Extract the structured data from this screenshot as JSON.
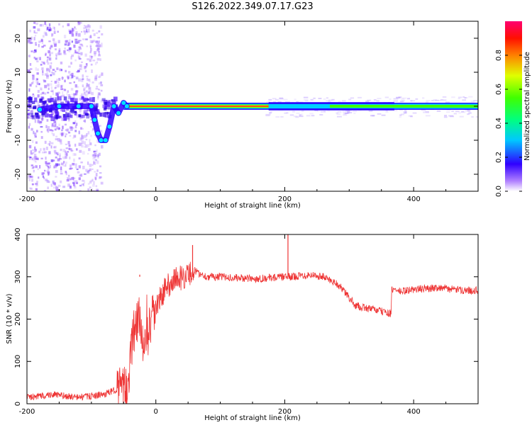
{
  "title": "S126.2022.349.07.17.G23",
  "colors": {
    "trace": "#ee3333",
    "signal_red": "#ff2020",
    "background": "#ffffff"
  },
  "chart_data": [
    {
      "type": "heatmap",
      "xlabel": "Height of straight line (km)",
      "ylabel": "Frequency (Hz)",
      "xlim": [
        -200,
        500
      ],
      "ylim": [
        -25,
        25
      ],
      "xticks": [
        -200,
        0,
        200,
        400
      ],
      "yticks": [
        -20,
        -10,
        0,
        10,
        20
      ],
      "xtick_labels": [
        "-200",
        "0",
        "200",
        "400"
      ],
      "ytick_labels": [
        "-20",
        "-10",
        "0",
        "10",
        "20"
      ],
      "colorbar": {
        "label": "Normalized spectral amplitude",
        "range": [
          0,
          1
        ],
        "ticks": [
          0,
          0.2,
          0.4,
          0.6,
          0.8
        ],
        "tick_labels": [
          "0.0",
          "0.2",
          "0.4",
          "0.6",
          "0.8"
        ]
      },
      "carrier_frequency_hz": 0,
      "frequency_track": [
        {
          "x": -180,
          "y": -1
        },
        {
          "x": -150,
          "y": 0
        },
        {
          "x": -120,
          "y": 0
        },
        {
          "x": -100,
          "y": 0
        },
        {
          "x": -95,
          "y": -4
        },
        {
          "x": -90,
          "y": -8
        },
        {
          "x": -85,
          "y": -10
        },
        {
          "x": -78,
          "y": -10
        },
        {
          "x": -72,
          "y": -6
        },
        {
          "x": -65,
          "y": 0
        },
        {
          "x": -58,
          "y": -2
        },
        {
          "x": -50,
          "y": 1
        },
        {
          "x": -45,
          "y": 0
        }
      ]
    },
    {
      "type": "line",
      "xlabel": "Height of straight line (km)",
      "ylabel": "SNR (10 * v/v)",
      "xlim": [
        -200,
        500
      ],
      "ylim": [
        0,
        400
      ],
      "xticks": [
        -200,
        0,
        200,
        400
      ],
      "yticks": [
        0,
        100,
        200,
        300,
        400
      ],
      "xtick_labels": [
        "-200",
        "0",
        "200",
        "400"
      ],
      "ytick_labels": [
        "0",
        "100",
        "200",
        "300",
        "400"
      ],
      "series": [
        {
          "x": [
            -200,
            -180,
            -160,
            -140,
            -120,
            -100,
            -80,
            -70,
            -60,
            -50,
            -45,
            -40,
            -35,
            -30,
            -25,
            -20,
            -15,
            -10,
            -5,
            0,
            10,
            20,
            30,
            40,
            50,
            60,
            70,
            80,
            100,
            120,
            150,
            180,
            200,
            205,
            210,
            220,
            240,
            260,
            270,
            280,
            290,
            300,
            310,
            320,
            340,
            360,
            365,
            366,
            370,
            380,
            400,
            420,
            440,
            460,
            480,
            500
          ],
          "y": [
            15,
            18,
            22,
            18,
            15,
            18,
            22,
            28,
            35,
            30,
            40,
            90,
            160,
            190,
            200,
            150,
            150,
            175,
            205,
            225,
            260,
            282,
            295,
            298,
            305,
            315,
            305,
            300,
            300,
            298,
            295,
            298,
            300,
            400,
            300,
            302,
            305,
            300,
            292,
            285,
            270,
            250,
            232,
            228,
            222,
            215,
            212,
            268,
            270,
            265,
            270,
            272,
            275,
            270,
            268,
            268
          ]
        }
      ],
      "spikes": [
        {
          "x": 205,
          "y": 400
        },
        {
          "x": 57,
          "y": 375
        },
        {
          "x": -25,
          "y": 305
        }
      ]
    }
  ]
}
